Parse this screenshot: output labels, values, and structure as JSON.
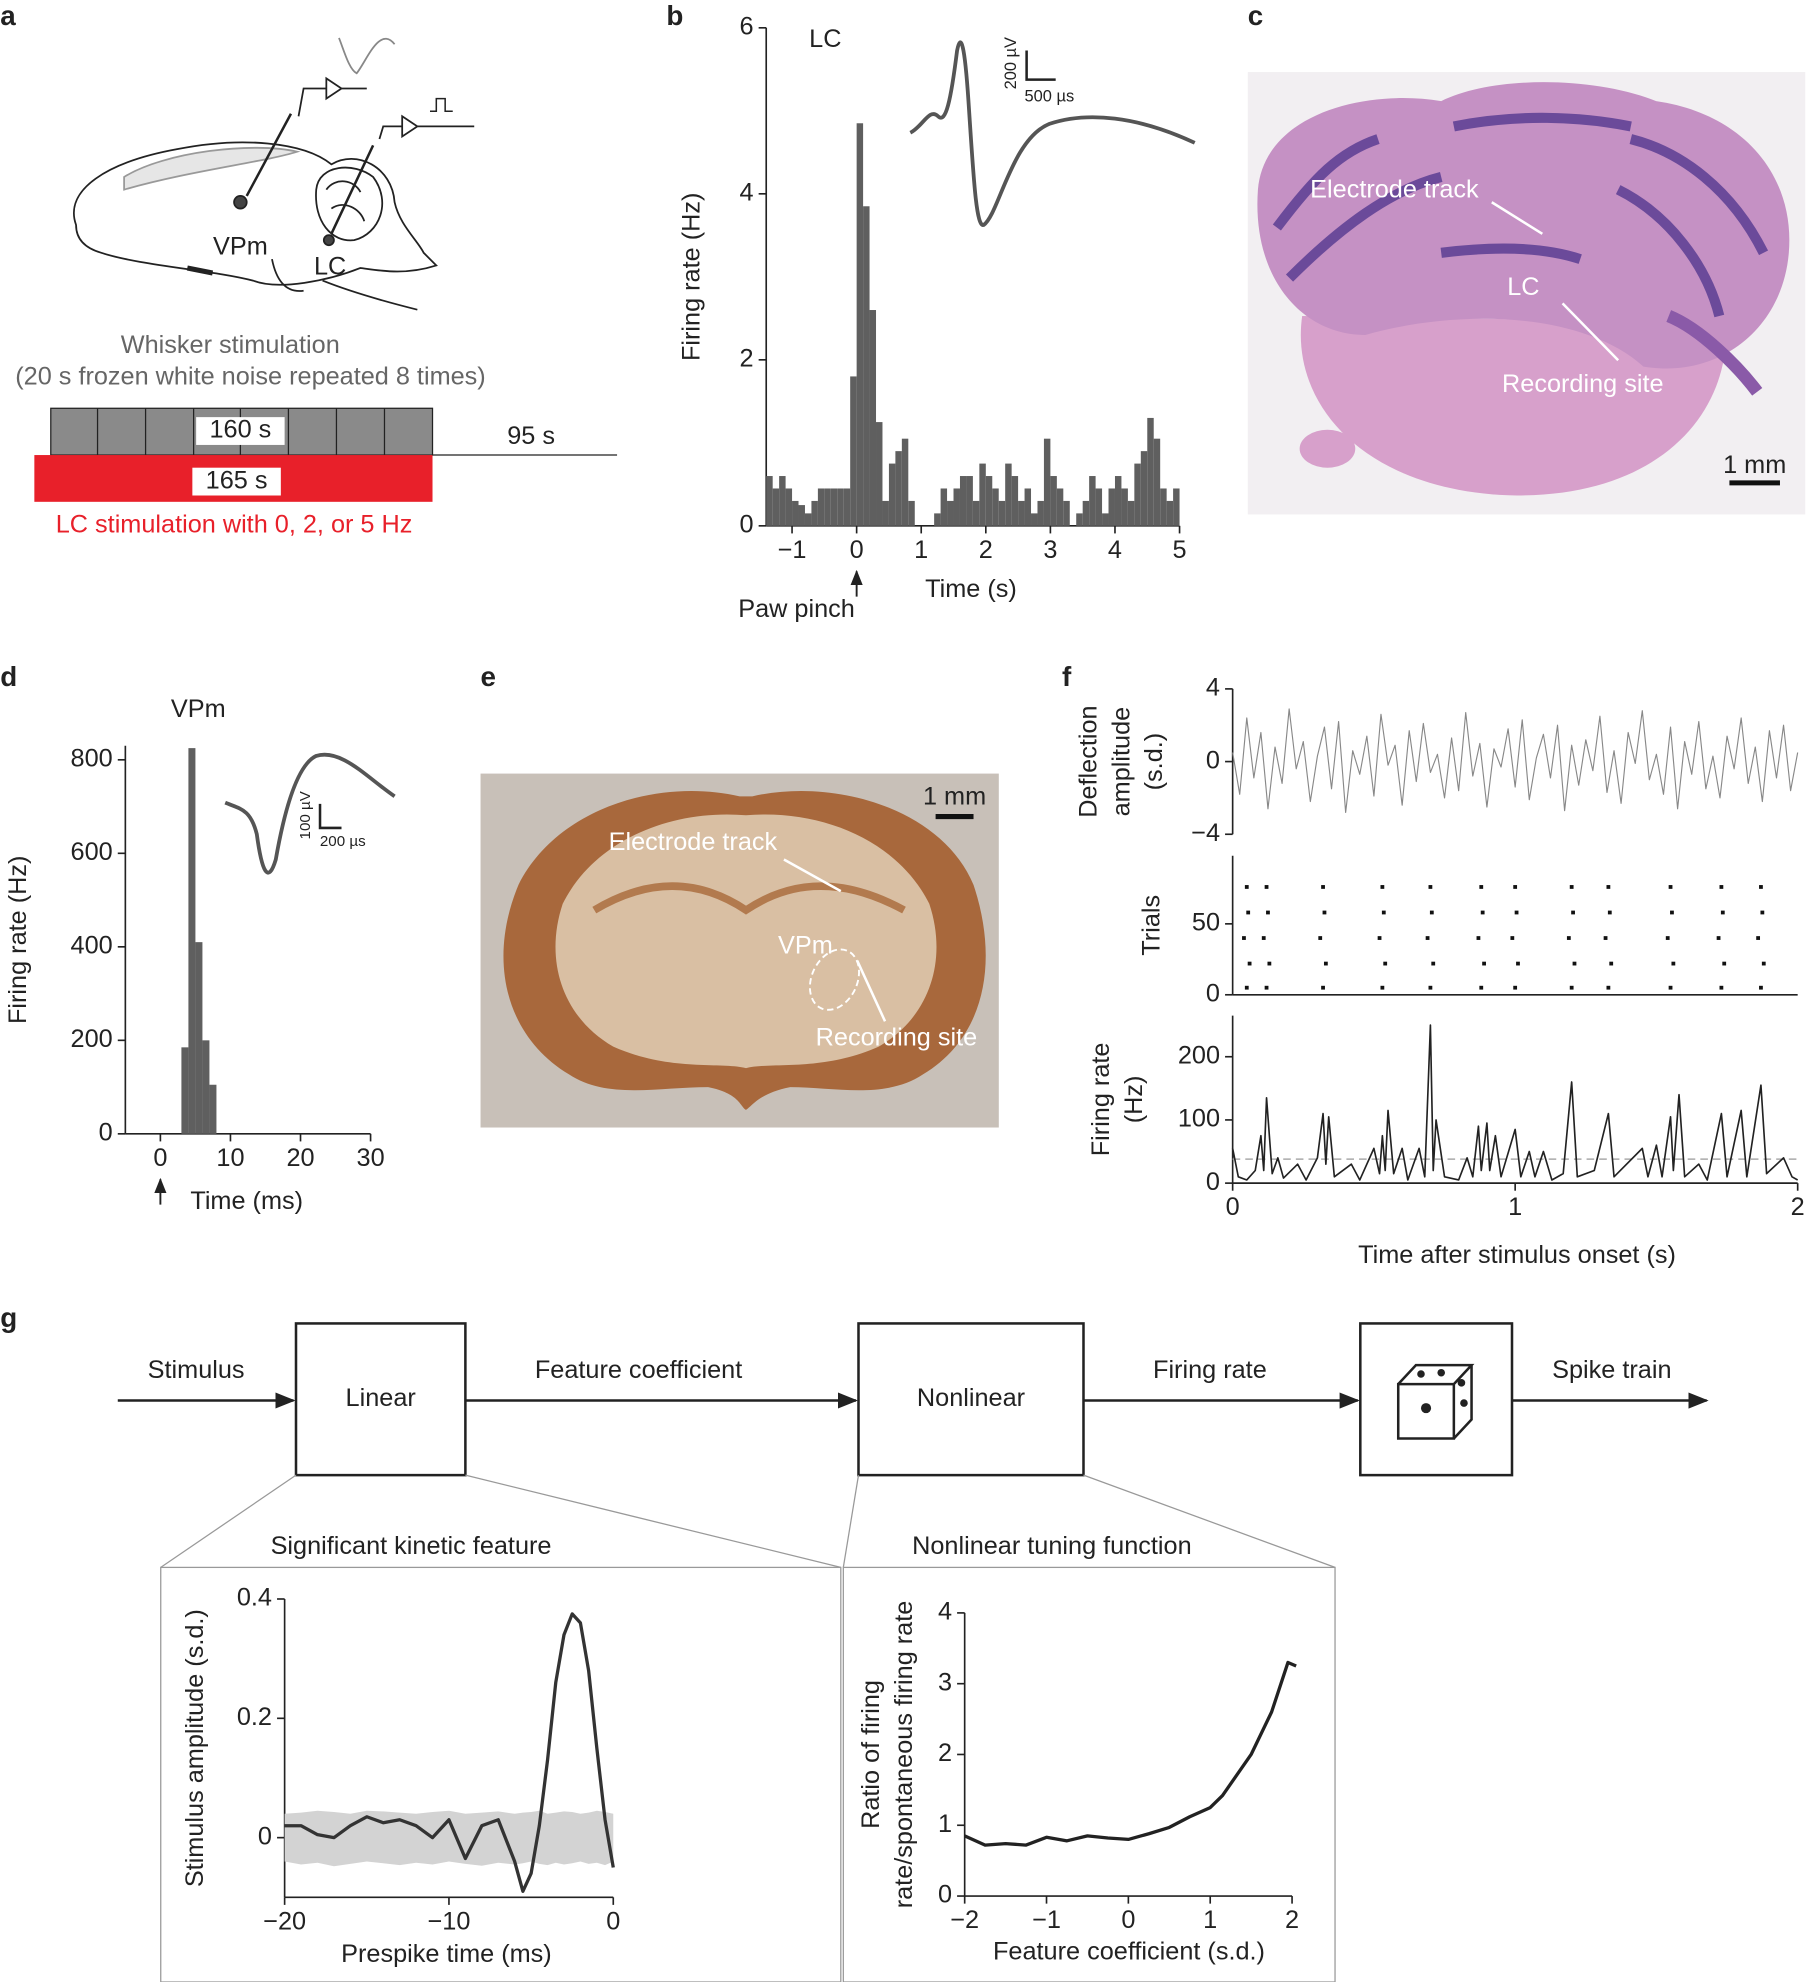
{
  "panel_labels": [
    "a",
    "b",
    "c",
    "d",
    "e",
    "f",
    "g"
  ],
  "panel_a": {
    "region_labels": [
      "VPm",
      "LC"
    ],
    "whisker_title": "Whisker stimulation",
    "whisker_subtitle": "(20 s frozen white noise repeated 8 times)",
    "whisker_duration": "160 s",
    "lc_duration": "165 s",
    "pause_duration": "95 s",
    "lc_caption": "LC stimulation with 0, 2, or 5 Hz"
  },
  "panel_b_inset": {
    "scale_y": "200 µV",
    "scale_x": "500 µs"
  },
  "panel_c": {
    "labels": [
      "Electrode track",
      "LC",
      "Recording site"
    ],
    "scale": "1 mm"
  },
  "panel_d_inset": {
    "scale_y": "100 µV",
    "scale_x": "200 µs"
  },
  "panel_e": {
    "labels": [
      "Electrode track",
      "VPm",
      "Recording site"
    ],
    "scale": "1 mm"
  },
  "panel_g": {
    "nodes": [
      "Linear",
      "Nonlinear"
    ],
    "edges": [
      "Stimulus",
      "Feature coefficient",
      "Firing rate",
      "Spike train"
    ]
  },
  "chart_data": [
    {
      "type": "histogram",
      "annotation": "LC",
      "color": "#5f5f5f",
      "x_label": "Time (s)",
      "y_label": "Firing rate (Hz)",
      "marker_x": 0,
      "marker_label": "Paw pinch",
      "bins": [
        -1.4,
        -1.3,
        -1.2,
        -1.1,
        -1,
        -0.9,
        -0.8,
        -0.7,
        -0.6,
        -0.5,
        -0.4,
        -0.3,
        -0.2,
        -0.1,
        0,
        0.1,
        0.2,
        0.3,
        0.4,
        0.5,
        0.6,
        0.7,
        0.8,
        0.9,
        1,
        1.1,
        1.2,
        1.3,
        1.4,
        1.5,
        1.6,
        1.7,
        1.8,
        1.9,
        2,
        2.1,
        2.2,
        2.3,
        2.4,
        2.5,
        2.6,
        2.7,
        2.8,
        2.9,
        3,
        3.1,
        3.2,
        3.3,
        3.4,
        3.5,
        3.6,
        3.7,
        3.8,
        3.9,
        4,
        4.1,
        4.2,
        4.3,
        4.4,
        4.5,
        4.6,
        4.7,
        4.8,
        4.9,
        5
      ],
      "values": [
        0.6,
        0.45,
        0.6,
        0.45,
        0.3,
        0.25,
        0.15,
        0.3,
        0.45,
        0.45,
        0.45,
        0.45,
        0.45,
        1.8,
        4.85,
        3.85,
        2.6,
        1.25,
        0.3,
        0.75,
        0.9,
        1.05,
        0.3,
        0,
        0,
        0,
        0.15,
        0.45,
        0.3,
        0.45,
        0.6,
        0.6,
        0.3,
        0.75,
        0.6,
        0.45,
        0.3,
        0.75,
        0.6,
        0.3,
        0.45,
        0.15,
        0.3,
        1.05,
        0.6,
        0.45,
        0.3,
        0,
        0.15,
        0.3,
        0.6,
        0.45,
        0.15,
        0.45,
        0.6,
        0.45,
        0.3,
        0.75,
        0.9,
        1.3,
        1.05,
        0.45,
        0.3,
        0.45
      ],
      "xlim": [
        -1.4,
        5
      ],
      "ylim": [
        0,
        6
      ],
      "xticks": [
        {
          "value": -1,
          "label": "−1"
        },
        0,
        1,
        2,
        3,
        4,
        5
      ],
      "yticks": [
        0,
        2,
        4,
        6
      ]
    },
    {
      "type": "histogram",
      "annotation": "VPm",
      "color": "#5f5f5f",
      "x_label": "Time (ms)",
      "y_label": "Firing rate (Hz)",
      "marker_x": 0,
      "bins": [
        3,
        4,
        5,
        6,
        7,
        8
      ],
      "values": [
        185,
        825,
        410,
        200,
        105
      ],
      "xlim": [
        -5,
        30
      ],
      "ylim": [
        0,
        830
      ],
      "xticks": [
        0,
        10,
        20,
        30
      ],
      "yticks": [
        0,
        200,
        400,
        600,
        800
      ]
    },
    {
      "type": "line",
      "color": "#888888",
      "y_label": [
        "Deflection",
        "amplitude",
        "(s.d.)"
      ],
      "x": [
        0,
        0.025,
        0.05,
        0.075,
        0.1,
        0.125,
        0.15,
        0.175,
        0.2,
        0.225,
        0.25,
        0.275,
        0.3,
        0.325,
        0.35,
        0.375,
        0.4,
        0.425,
        0.45,
        0.475,
        0.5,
        0.525,
        0.55,
        0.575,
        0.6,
        0.625,
        0.65,
        0.675,
        0.7,
        0.725,
        0.75,
        0.775,
        0.8,
        0.825,
        0.85,
        0.875,
        0.9,
        0.925,
        0.95,
        0.975,
        1,
        1.025,
        1.05,
        1.075,
        1.1,
        1.125,
        1.15,
        1.175,
        1.2,
        1.225,
        1.25,
        1.275,
        1.3,
        1.325,
        1.35,
        1.375,
        1.4,
        1.425,
        1.45,
        1.475,
        1.5,
        1.525,
        1.55,
        1.575,
        1.6,
        1.625,
        1.65,
        1.675,
        1.7,
        1.725,
        1.75,
        1.775,
        1.8,
        1.825,
        1.85,
        1.875,
        1.9,
        1.925,
        1.95,
        1.975,
        2
      ],
      "values": [
        0.5,
        -1.8,
        2.4,
        -0.9,
        1.6,
        -2.6,
        0.8,
        -1.2,
        2.9,
        -0.4,
        1.1,
        -2.2,
        0.3,
        1.9,
        -1.5,
        2.2,
        -2.8,
        0.6,
        -0.7,
        1.4,
        -1.9,
        2.6,
        -0.2,
        0.9,
        -2.4,
        1.7,
        -1.1,
        2.1,
        -0.6,
        0.4,
        -2.0,
        1.3,
        -1.6,
        2.7,
        -0.8,
        1.0,
        -2.5,
        0.7,
        -0.3,
        1.8,
        -1.4,
        2.3,
        -2.1,
        0.2,
        1.5,
        -0.9,
        2.0,
        -2.7,
        0.9,
        -1.3,
        1.2,
        -0.5,
        2.5,
        -1.7,
        0.6,
        -2.3,
        1.6,
        -0.1,
        2.8,
        -1.0,
        0.4,
        -1.8,
        1.9,
        -2.6,
        1.1,
        -0.7,
        2.2,
        -1.5,
        0.3,
        -2.0,
        1.4,
        -0.4,
        2.4,
        -1.2,
        0.8,
        -2.2,
        1.7,
        -0.9,
        2.0,
        -1.6,
        0.5
      ],
      "xlim": [
        0,
        2
      ],
      "ylim": [
        -4,
        4
      ],
      "yticks": [
        {
          "value": -4,
          "label": "−4"
        },
        0,
        4
      ]
    },
    {
      "type": "scatter",
      "color": "#111111",
      "y_label": "Trials",
      "x": [
        0.05,
        0.06,
        0.04,
        0.055,
        0.05,
        0.12,
        0.13,
        0.11,
        0.125,
        0.12,
        0.32,
        0.33,
        0.31,
        0.325,
        0.32,
        0.53,
        0.54,
        0.52,
        0.535,
        0.53,
        0.7,
        0.71,
        0.69,
        0.705,
        0.7,
        0.88,
        0.89,
        0.87,
        0.885,
        0.88,
        1,
        1.01,
        0.99,
        1.005,
        1,
        1.2,
        1.21,
        1.19,
        1.205,
        1.2,
        1.33,
        1.34,
        1.32,
        1.335,
        1.33,
        1.55,
        1.56,
        1.54,
        1.555,
        1.55,
        1.73,
        1.74,
        1.72,
        1.735,
        1.73,
        1.87,
        1.88,
        1.86,
        1.875,
        1.87
      ],
      "values": [
        5,
        22,
        40,
        58,
        76,
        5,
        22,
        40,
        58,
        76,
        5,
        22,
        40,
        58,
        76,
        5,
        22,
        40,
        58,
        76,
        5,
        22,
        40,
        58,
        76,
        5,
        22,
        40,
        58,
        76,
        5,
        22,
        40,
        58,
        76,
        5,
        22,
        40,
        58,
        76,
        5,
        22,
        40,
        58,
        76,
        5,
        22,
        40,
        58,
        76,
        5,
        22,
        40,
        58,
        76,
        5,
        22,
        40,
        58,
        76
      ],
      "xlim": [
        0,
        2
      ],
      "ylim": [
        0,
        98
      ],
      "yticks": [
        0,
        50
      ]
    },
    {
      "type": "line",
      "color": "#222222",
      "x_label": "Time after stimulus onset (s)",
      "y_label": [
        "Firing rate",
        "(Hz)"
      ],
      "reference_line": 38,
      "x": [
        0,
        0.02,
        0.05,
        0.08,
        0.1,
        0.11,
        0.12,
        0.14,
        0.16,
        0.18,
        0.23,
        0.26,
        0.3,
        0.32,
        0.33,
        0.34,
        0.36,
        0.42,
        0.45,
        0.5,
        0.52,
        0.53,
        0.54,
        0.55,
        0.57,
        0.6,
        0.62,
        0.66,
        0.68,
        0.7,
        0.71,
        0.72,
        0.75,
        0.8,
        0.83,
        0.85,
        0.87,
        0.88,
        0.9,
        0.91,
        0.93,
        0.95,
        1,
        1.02,
        1.05,
        1.07,
        1.1,
        1.13,
        1.17,
        1.2,
        1.22,
        1.28,
        1.33,
        1.35,
        1.45,
        1.47,
        1.5,
        1.52,
        1.55,
        1.56,
        1.58,
        1.6,
        1.65,
        1.68,
        1.73,
        1.75,
        1.8,
        1.82,
        1.87,
        1.89,
        1.95,
        1.98,
        2
      ],
      "values": [
        55,
        10,
        5,
        20,
        75,
        20,
        135,
        15,
        40,
        8,
        30,
        5,
        40,
        110,
        30,
        105,
        10,
        30,
        5,
        55,
        15,
        75,
        20,
        115,
        15,
        55,
        5,
        55,
        10,
        250,
        20,
        100,
        10,
        5,
        40,
        10,
        90,
        20,
        95,
        20,
        75,
        10,
        85,
        10,
        50,
        10,
        50,
        5,
        15,
        160,
        10,
        20,
        110,
        10,
        55,
        10,
        60,
        10,
        105,
        20,
        140,
        10,
        30,
        5,
        110,
        10,
        115,
        10,
        155,
        15,
        40,
        10,
        5
      ],
      "xlim": [
        0,
        2
      ],
      "ylim": [
        0,
        265
      ],
      "xticks": [
        0,
        1,
        2
      ],
      "yticks": [
        0,
        100,
        200
      ]
    },
    {
      "type": "line",
      "title": "Significant kinetic feature",
      "color": "#333333",
      "band_color": "#d3d3d3",
      "x_label": "Prespike time (ms)",
      "y_label": "Stimulus amplitude (s.d.)",
      "x": [
        -20,
        -19,
        -18,
        -17,
        -16,
        -15,
        -14,
        -13,
        -12,
        -11,
        -10,
        -9,
        -8,
        -7,
        -6,
        -5.5,
        -5,
        -4.5,
        -4,
        -3.5,
        -3,
        -2.5,
        -2,
        -1.5,
        -1,
        -0.5,
        0
      ],
      "values": [
        0.02,
        0.02,
        0.005,
        0,
        0.02,
        0.035,
        0.025,
        0.03,
        0.02,
        0,
        0.03,
        -0.035,
        0.02,
        0.03,
        -0.04,
        -0.09,
        -0.06,
        0.02,
        0.13,
        0.26,
        0.34,
        0.375,
        0.36,
        0.28,
        0.15,
        0.03,
        -0.05
      ],
      "band_upper": [
        0.04,
        0.042,
        0.045,
        0.043,
        0.04,
        0.045,
        0.044,
        0.042,
        0.04,
        0.043,
        0.045,
        0.04,
        0.042,
        0.044,
        0.04,
        0.042,
        0.043,
        0.045,
        0.04,
        0.042,
        0.044,
        0.043,
        0.04,
        0.042,
        0.045,
        0.043,
        0.04
      ],
      "band_lower": [
        -0.04,
        -0.045,
        -0.042,
        -0.048,
        -0.044,
        -0.04,
        -0.043,
        -0.046,
        -0.042,
        -0.045,
        -0.04,
        -0.044,
        -0.047,
        -0.042,
        -0.045,
        -0.043,
        -0.04,
        -0.044,
        -0.046,
        -0.042,
        -0.045,
        -0.043,
        -0.04,
        -0.044,
        -0.042,
        -0.046,
        -0.04
      ],
      "xlim": [
        -20,
        0
      ],
      "ylim": [
        -0.1,
        0.4
      ],
      "xticks": [
        {
          "value": -20,
          "label": "−20"
        },
        {
          "value": -10,
          "label": "−10"
        },
        0
      ],
      "yticks": [
        0,
        0.2,
        0.4
      ]
    },
    {
      "type": "line",
      "title": "Nonlinear tuning function",
      "color": "#222222",
      "x_label": "Feature coefficient (s.d.)",
      "y_label": [
        "Ratio of firing",
        "rate/spontaneous firing rate"
      ],
      "x": [
        -2,
        -1.75,
        -1.5,
        -1.25,
        -1,
        -0.75,
        -0.5,
        -0.25,
        0,
        0.25,
        0.5,
        0.75,
        1,
        1.15,
        1.5,
        1.75,
        1.95,
        2.05
      ],
      "values": [
        0.85,
        0.72,
        0.74,
        0.72,
        0.83,
        0.78,
        0.85,
        0.82,
        0.8,
        0.88,
        0.97,
        1.12,
        1.25,
        1.42,
        2.0,
        2.6,
        3.3,
        3.25
      ],
      "xlim": [
        -2,
        2
      ],
      "ylim": [
        0,
        4
      ],
      "xticks": [
        {
          "value": -2,
          "label": "−2"
        },
        {
          "value": -1,
          "label": "−1"
        },
        0,
        1,
        2
      ],
      "yticks": [
        0,
        1,
        2,
        3,
        4
      ]
    }
  ]
}
